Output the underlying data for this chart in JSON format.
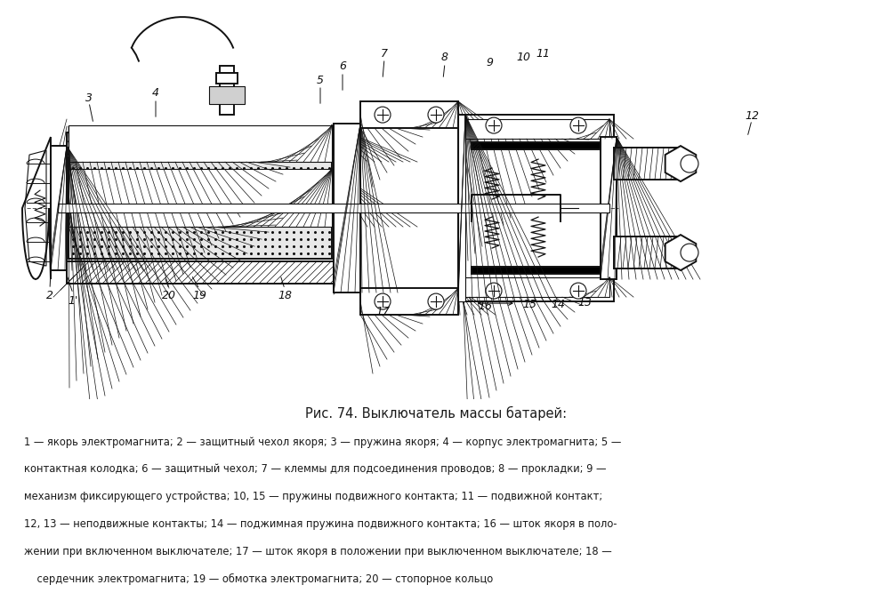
{
  "title": "Рис. 74. Выключатель массы батарей:",
  "caption_line1": "1 — якорь электромагнита; 2 — защитный чехол якоря; 3 — пружина якоря; 4 — корпус электромагнита; 5 —",
  "caption_line2": "контактная колодка; 6 — защитный чехол; 7 — клеммы для подсоединения проводов; 8 — прокладки; 9 —",
  "caption_line3": "механизм фиксирующего устройства; 10, 15 — пружины подвижного контакта; 11 — подвижной контакт;",
  "caption_line4": "12, 13 — неподвижные контакты; 14 — поджимная пружина подвижного контакта; 16 — шток якоря в поло-",
  "caption_line5": "жении при включенном выключателе; 17 — шток якоря в положении при выключенном выключателе; 18 —",
  "caption_line6": "    сердечник электромагнита; 19 — обмотка электромагнита; 20 — стопорное кольцо",
  "bg_color": "#ffffff",
  "text_color": "#1a1a1a",
  "figsize": [
    9.6,
    6.51
  ],
  "dpi": 100
}
